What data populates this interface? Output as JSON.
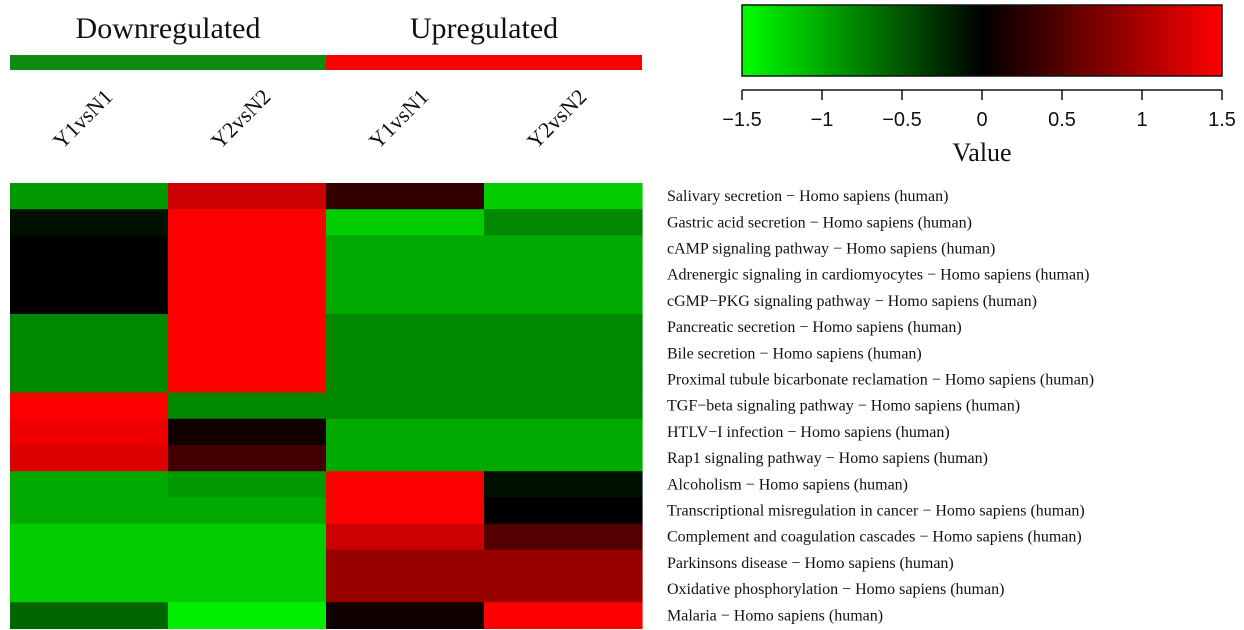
{
  "chart_data": {
    "type": "heatmap",
    "groups": [
      {
        "label": "Downregulated",
        "color": "#0f8c0f",
        "columns": [
          0,
          1
        ]
      },
      {
        "label": "Upregulated",
        "color": "#ff0000",
        "columns": [
          2,
          3
        ]
      }
    ],
    "columns": [
      "Y1vsN1",
      "Y2vsN2",
      "Y1vsN1",
      "Y2vsN2"
    ],
    "rows": [
      "Salivary secretion − Homo sapiens (human)",
      "Gastric acid secretion − Homo sapiens (human)",
      "cAMP signaling pathway − Homo sapiens (human)",
      "Adrenergic signaling in cardiomyocytes − Homo sapiens (human)",
      "cGMP−PKG signaling pathway − Homo sapiens (human)",
      "Pancreatic secretion − Homo sapiens (human)",
      "Bile secretion − Homo sapiens (human)",
      "Proximal tubule bicarbonate reclamation − Homo sapiens (human)",
      "TGF−beta signaling pathway − Homo sapiens (human)",
      "HTLV−I infection − Homo sapiens (human)",
      "Rap1 signaling pathway − Homo sapiens (human)",
      "Alcoholism − Homo sapiens (human)",
      "Transcriptional misregulation in cancer − Homo sapiens (human)",
      "Complement and coagulation cascades − Homo sapiens (human)",
      "Parkinsons disease − Homo sapiens (human)",
      "Oxidative phosphorylation − Homo sapiens (human)",
      "Malaria − Homo sapiens (human)"
    ],
    "values": [
      [
        -0.9,
        1.2,
        0.3,
        -1.2
      ],
      [
        -0.1,
        1.5,
        -1.2,
        -0.8
      ],
      [
        0.0,
        1.5,
        -1.0,
        -1.0
      ],
      [
        0.0,
        1.5,
        -1.0,
        -1.0
      ],
      [
        0.0,
        1.5,
        -1.0,
        -1.0
      ],
      [
        -0.8,
        1.5,
        -0.8,
        -0.8
      ],
      [
        -0.8,
        1.5,
        -0.8,
        -0.8
      ],
      [
        -0.8,
        1.5,
        -0.8,
        -0.8
      ],
      [
        1.5,
        -0.8,
        -0.8,
        -0.8
      ],
      [
        1.4,
        0.1,
        -1.0,
        -1.0
      ],
      [
        1.3,
        0.4,
        -1.0,
        -1.0
      ],
      [
        -1.0,
        -0.9,
        1.5,
        -0.1
      ],
      [
        -1.0,
        -1.0,
        1.5,
        0.0
      ],
      [
        -1.2,
        -1.2,
        1.2,
        0.5
      ],
      [
        -1.2,
        -1.2,
        0.9,
        0.9
      ],
      [
        -1.2,
        -1.2,
        0.9,
        0.9
      ],
      [
        -0.6,
        -1.4,
        0.1,
        1.5
      ]
    ],
    "color_scale": {
      "low": "#00ff00",
      "mid": "#000000",
      "high": "#ff0000",
      "min": -1.5,
      "max": 1.5
    },
    "colorbar": {
      "ticks": [
        -1.5,
        -1,
        -0.5,
        0,
        0.5,
        1,
        1.5
      ],
      "tick_labels": [
        "−1.5",
        "−1",
        "−0.5",
        "0",
        "0.5",
        "1",
        "1.5"
      ],
      "xlabel": "Value"
    }
  }
}
